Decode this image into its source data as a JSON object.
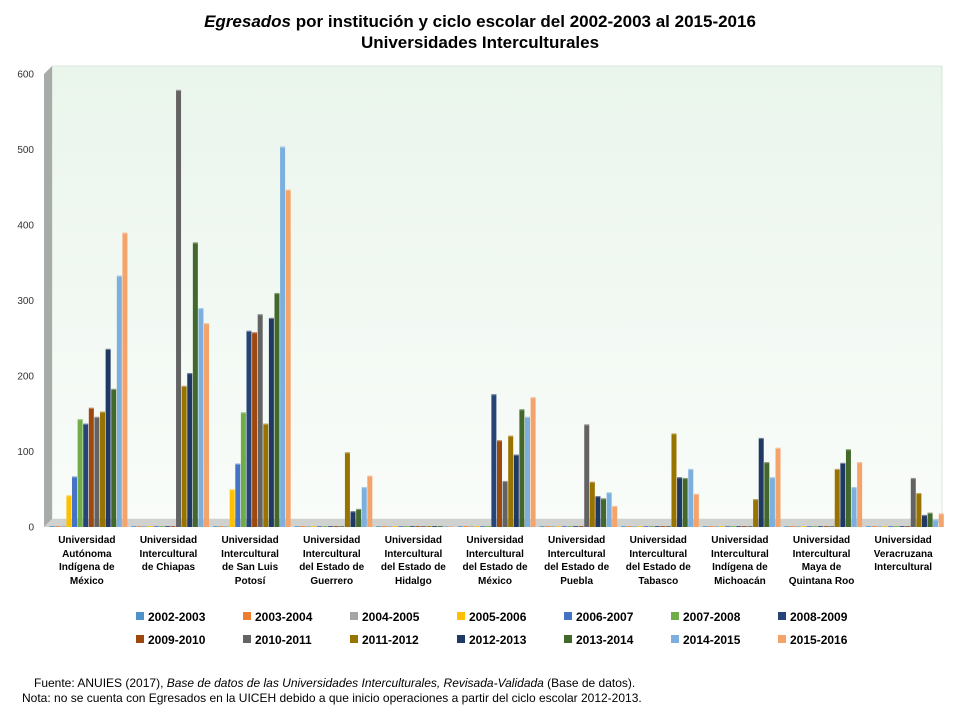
{
  "title": {
    "italic_part": "Egresados",
    "rest_line1": " por institución y ciclo escolar del 2002-2003 al  2015-2016",
    "line2": "Universidades Interculturales"
  },
  "chart_data": {
    "type": "bar",
    "title": "Egresados por institución y ciclo escolar del 2002-2003 al 2015-2016 Universidades Interculturales",
    "ylim": [
      0,
      600
    ],
    "yticks": [
      0,
      100,
      200,
      300,
      400,
      500,
      600
    ],
    "grid": false,
    "legend_position": "bottom",
    "categories": [
      "Universidad Autónoma Indígena de México",
      "Universidad Intercultural de Chiapas",
      "Universidad Intercultural de San Luis Potosí",
      "Universidad Intercultural del Estado de Guerrero",
      "Universidad Intercultural del Estado de Hidalgo",
      "Universidad Intercultural del Estado de México",
      "Universidad Intercultural del Estado de Puebla",
      "Universidad Intercultural del Estado de Tabasco",
      "Universidad Intercultural Indígena de Michoacán",
      "Universidad Intercultural Maya de Quintana Roo",
      "Universidad Veracruzana Intercultural"
    ],
    "category_lines": [
      [
        "Universidad",
        "Autónoma",
        "Indígena de",
        "México"
      ],
      [
        "Universidad",
        "Intercultural",
        "de Chiapas"
      ],
      [
        "Universidad",
        "Intercultural",
        "de San Luis",
        "Potosí"
      ],
      [
        "Universidad",
        "Intercultural",
        "del Estado de",
        "Guerrero"
      ],
      [
        "Universidad",
        "Intercultural",
        "del Estado de",
        "Hidalgo"
      ],
      [
        "Universidad",
        "Intercultural",
        "del Estado de",
        "México"
      ],
      [
        "Universidad",
        "Intercultural",
        "del Estado de",
        "Puebla"
      ],
      [
        "Universidad",
        "Intercultural",
        "del Estado de",
        "Tabasco"
      ],
      [
        "Universidad",
        "Intercultural",
        "Indígena de",
        "Michoacán"
      ],
      [
        "Universidad",
        "Intercultural",
        "Maya de",
        "Quintana Roo"
      ],
      [
        "Universidad",
        "Veracruzana",
        "Intercultural"
      ]
    ],
    "series": [
      {
        "name": "2002-2003",
        "color": "#4f93c9",
        "values": [
          0,
          0,
          0,
          0,
          0,
          0,
          0,
          0,
          0,
          0,
          0
        ]
      },
      {
        "name": "2003-2004",
        "color": "#ed7d31",
        "values": [
          0,
          0,
          0,
          0,
          0,
          0,
          0,
          0,
          0,
          0,
          0
        ]
      },
      {
        "name": "2004-2005",
        "color": "#a5a5a5",
        "values": [
          0,
          0,
          0,
          0,
          0,
          0,
          0,
          0,
          0,
          0,
          0
        ]
      },
      {
        "name": "2005-2006",
        "color": "#ffc000",
        "values": [
          42,
          0,
          50,
          0,
          0,
          0,
          0,
          0,
          0,
          0,
          0
        ]
      },
      {
        "name": "2006-2007",
        "color": "#4472c4",
        "values": [
          67,
          0,
          84,
          0,
          0,
          0,
          0,
          0,
          0,
          0,
          0
        ]
      },
      {
        "name": "2007-2008",
        "color": "#70ad47",
        "values": [
          143,
          0,
          152,
          0,
          0,
          0,
          0,
          0,
          0,
          0,
          0
        ]
      },
      {
        "name": "2008-2009",
        "color": "#264478",
        "values": [
          137,
          0,
          260,
          0,
          0,
          176,
          0,
          0,
          0,
          0,
          0
        ]
      },
      {
        "name": "2009-2010",
        "color": "#9e480e",
        "values": [
          158,
          0,
          258,
          0,
          0,
          115,
          0,
          0,
          0,
          0,
          0
        ]
      },
      {
        "name": "2010-2011",
        "color": "#636363",
        "values": [
          146,
          579,
          282,
          0,
          0,
          61,
          136,
          0,
          0,
          0,
          65
        ]
      },
      {
        "name": "2011-2012",
        "color": "#997300",
        "values": [
          153,
          187,
          137,
          99,
          0,
          121,
          60,
          124,
          37,
          77,
          45
        ]
      },
      {
        "name": "2012-2013",
        "color": "#203864",
        "values": [
          236,
          204,
          277,
          21,
          0,
          96,
          41,
          66,
          118,
          85,
          16
        ]
      },
      {
        "name": "2013-2014",
        "color": "#43682b",
        "values": [
          183,
          377,
          310,
          24,
          0,
          156,
          38,
          65,
          86,
          103,
          19
        ]
      },
      {
        "name": "2014-2015",
        "color": "#7cafdd",
        "values": [
          333,
          290,
          504,
          53,
          0,
          146,
          46,
          77,
          66,
          53,
          10
        ]
      },
      {
        "name": "2015-2016",
        "color": "#f4a46a",
        "values": [
          390,
          270,
          447,
          68,
          0,
          172,
          28,
          44,
          105,
          86,
          18
        ]
      }
    ]
  },
  "footer": {
    "source_prefix": "Fuente: ANUIES (2017),   ",
    "source_italic": "Base de datos de las Universidades  Interculturales, Revisada-Validada",
    "source_suffix": "  (Base de datos).",
    "note": "Nota: no se cuenta con Egresados en la UICEH debido a que inicio operaciones  a partir del ciclo escolar 2012-2013."
  }
}
